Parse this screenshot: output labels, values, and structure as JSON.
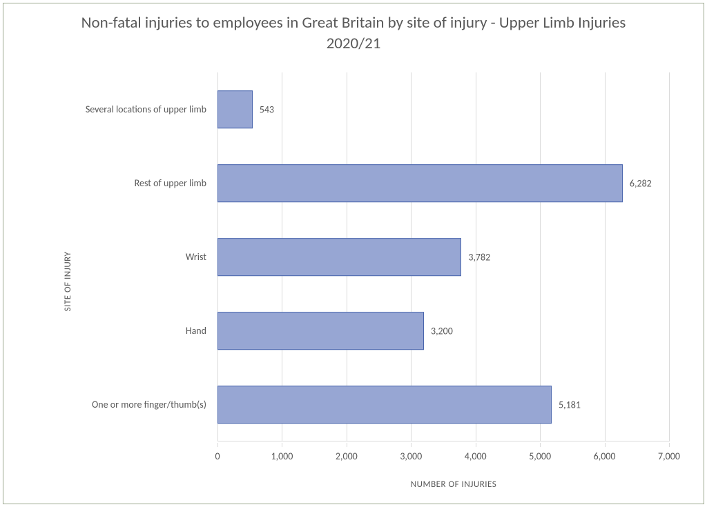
{
  "chart": {
    "type": "bar-horizontal",
    "title": "Non-fatal injuries to employees in Great Britain by site of injury - Upper Limb Injuries 2020/21",
    "title_color": "#595959",
    "title_fontsize": 23,
    "x_axis": {
      "title": "NUMBER OF INJURIES",
      "min": 0,
      "max": 7000,
      "tick_step": 1000,
      "tick_labels": [
        "0",
        "1,000",
        "2,000",
        "3,000",
        "4,000",
        "5,000",
        "6,000",
        "7,000"
      ],
      "label_color": "#595959",
      "label_fontsize": 14,
      "title_fontsize": 13
    },
    "y_axis": {
      "title": "SITE OF INJURY",
      "label_color": "#595959",
      "label_fontsize": 14,
      "title_fontsize": 13
    },
    "categories": [
      "Several locations of upper limb",
      "Rest of upper limb",
      "Wrist",
      "Hand",
      "One or more finger/thumb(s)"
    ],
    "values": [
      543,
      6282,
      3782,
      3200,
      5181
    ],
    "value_labels": [
      "543",
      "6,282",
      "3,782",
      "3,200",
      "5,181"
    ],
    "bar_fill": "#97a6d3",
    "bar_border": "#4a66ad",
    "bar_height_ratio": 0.52,
    "grid_color": "#d9d9d9",
    "background": "#ffffff",
    "outer_border": "#9aa78e"
  }
}
